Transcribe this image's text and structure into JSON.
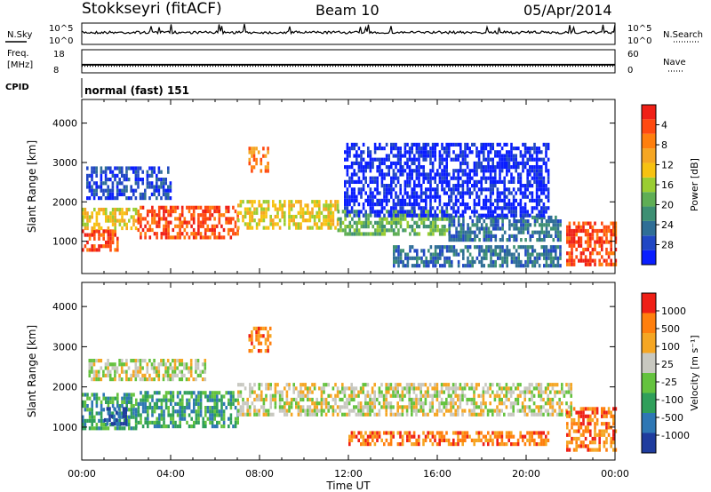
{
  "header": {
    "station": "Stokkseyri (fitACF)",
    "beam": "Beam 10",
    "date": "05/Apr/2014"
  },
  "chart_data": [
    {
      "type": "line",
      "panel": "noise",
      "left_label": "N.Sky",
      "right_label": "N.Search",
      "left_ticks": [
        "10^5",
        "10^0"
      ],
      "right_ticks": [
        "10^5",
        "10^0"
      ]
    },
    {
      "type": "line",
      "panel": "frequency",
      "left_label_top": "Freq.",
      "left_label_unit": "[MHz]",
      "left_ticks": [
        "18",
        "8"
      ],
      "right_label": "Nave",
      "right_ticks": [
        "60",
        "0"
      ],
      "freq_mhz": 11.5,
      "nave": 17
    },
    {
      "type": "table",
      "panel": "cpid",
      "label": "CPID",
      "value": "normal (fast) 151"
    },
    {
      "type": "heatmap",
      "panel": "power",
      "ylabel": "Slant Range [km]",
      "y_ticks": [
        1000,
        2000,
        3000,
        4000
      ],
      "ylim": [
        180,
        4600
      ],
      "xlim": [
        0,
        24
      ],
      "colorbar_label": "Power [dB]",
      "colorbar_ticks": [
        "4",
        "8",
        "12",
        "16",
        "20",
        "24",
        "28"
      ],
      "colors": [
        "#0a1eff",
        "#2147c4",
        "#2f6e96",
        "#3d8f73",
        "#5fae55",
        "#9acd32",
        "#f7c211",
        "#f5a623",
        "#ff7f0e",
        "#ff4a10",
        "#ef1f16"
      ],
      "regions": [
        {
          "t0": 0.0,
          "t1": 1.6,
          "r0": 800,
          "r1": 1300,
          "level": 9
        },
        {
          "t0": 0.0,
          "t1": 2.4,
          "r0": 1300,
          "r1": 1850,
          "level": 6
        },
        {
          "t0": 2.5,
          "t1": 7.0,
          "r0": 1050,
          "r1": 1900,
          "level": 9
        },
        {
          "t0": 7.0,
          "t1": 11.5,
          "r0": 1350,
          "r1": 2050,
          "level": 6
        },
        {
          "t0": 11.5,
          "t1": 16.5,
          "r0": 1150,
          "r1": 1800,
          "level": 4
        },
        {
          "t0": 16.5,
          "t1": 21.5,
          "r0": 1000,
          "r1": 1650,
          "level": 2
        },
        {
          "t0": 21.8,
          "t1": 24.0,
          "r0": 400,
          "r1": 1500,
          "level": 9
        },
        {
          "t0": 0.2,
          "t1": 4.0,
          "r0": 2100,
          "r1": 2900,
          "level": 1
        },
        {
          "t0": 7.5,
          "t1": 8.4,
          "r0": 2800,
          "r1": 3400,
          "level": 8
        },
        {
          "t0": 11.8,
          "t1": 21.0,
          "r0": 1700,
          "r1": 3500,
          "level": 0
        },
        {
          "t0": 14.0,
          "t1": 21.5,
          "r0": 400,
          "r1": 900,
          "level": 2
        }
      ]
    },
    {
      "type": "heatmap",
      "panel": "velocity",
      "xlabel": "Time UT",
      "ylabel": "Slant Range [km]",
      "x_ticks": [
        "00:00",
        "04:00",
        "08:00",
        "12:00",
        "16:00",
        "20:00",
        "00:00"
      ],
      "y_ticks": [
        1000,
        2000,
        3000,
        4000
      ],
      "ylim": [
        180,
        4600
      ],
      "xlim": [
        0,
        24
      ],
      "colorbar_label": "Velocity [m s⁻¹]",
      "colorbar_ticks": [
        "1000",
        "500",
        "100",
        "25",
        "-25",
        "-100",
        "-500",
        "-1000"
      ],
      "colors": [
        "#1f3c9e",
        "#2e77b4",
        "#2f9f5a",
        "#64c23e",
        "#c8c8c0",
        "#f5a623",
        "#ff7f0e",
        "#ef1f16"
      ],
      "regions": [
        {
          "t0": 0.0,
          "t1": 2.4,
          "r0": 1000,
          "r1": 1850,
          "level": 2
        },
        {
          "t0": 2.4,
          "t1": 7.0,
          "r0": 1050,
          "r1": 1900,
          "level": 2
        },
        {
          "t0": 7.0,
          "t1": 22.0,
          "r0": 1300,
          "r1": 2100,
          "level": 4
        },
        {
          "t0": 0.3,
          "t1": 5.5,
          "r0": 2200,
          "r1": 2700,
          "level": 4
        },
        {
          "t0": 7.5,
          "t1": 8.5,
          "r0": 2900,
          "r1": 3500,
          "level": 6
        },
        {
          "t0": 12.0,
          "t1": 21.0,
          "r0": 550,
          "r1": 900,
          "level": 6
        },
        {
          "t0": 21.8,
          "t1": 24.0,
          "r0": 400,
          "r1": 1500,
          "level": 6
        },
        {
          "t0": 1.0,
          "t1": 2.0,
          "r0": 1100,
          "r1": 1500,
          "level": 0
        }
      ]
    }
  ]
}
